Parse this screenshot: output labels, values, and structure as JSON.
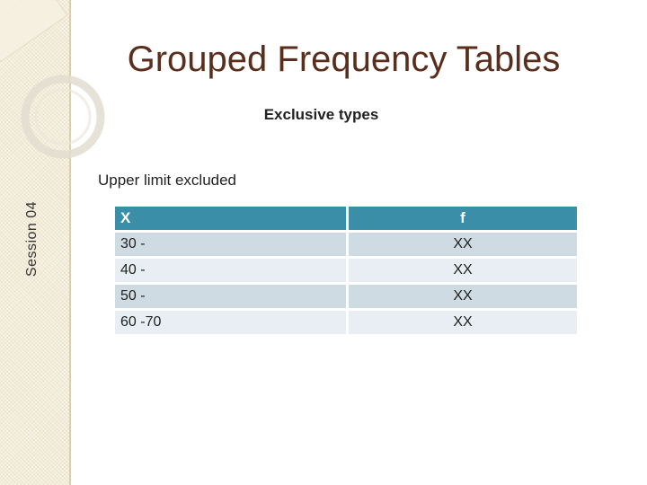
{
  "session_label": "Session 04",
  "title": "Grouped Frequency Tables",
  "subtitle": "Exclusive types",
  "note": "Upper limit excluded",
  "table": {
    "headers": [
      "X",
      "f"
    ],
    "rows": [
      [
        "30 -",
        "XX"
      ],
      [
        "40 -",
        "XX"
      ],
      [
        "50 -",
        "XX"
      ],
      [
        "60 -70",
        "XX"
      ]
    ]
  },
  "colors": {
    "title": "#5a2e1c",
    "header_bg": "#3a8ea8",
    "row_dark": "#cfdbe3",
    "row_light": "#e8eef3",
    "sidebar": "#f3ecd8"
  }
}
